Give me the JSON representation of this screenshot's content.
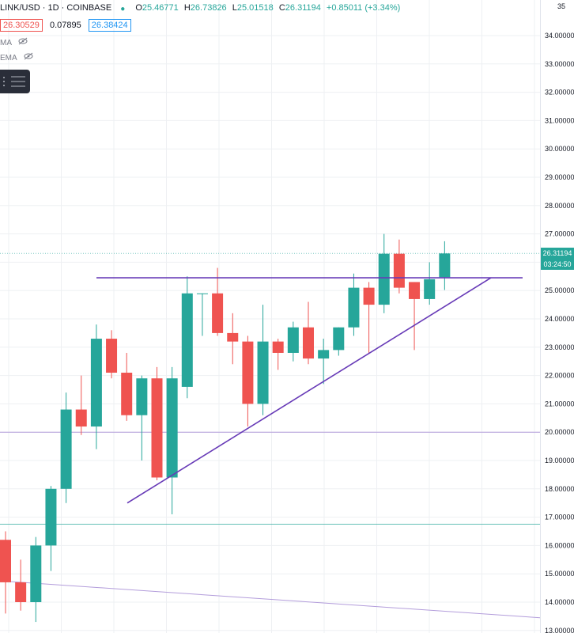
{
  "header": {
    "symbol": "LINK/USD · 1D · COINBASE",
    "open_label": "O",
    "open": "25.46771",
    "high_label": "H",
    "high": "26.73826",
    "low_label": "L",
    "low": "25.01518",
    "close_label": "C",
    "close": "26.31194",
    "change": "+0.85011 (+3.34%)",
    "bid": "26.30529",
    "spread": "0.07895",
    "ask": "26.38424"
  },
  "indicators": [
    {
      "name": "MA"
    },
    {
      "name": "EMA"
    }
  ],
  "axis": {
    "top_partial": "35",
    "last_price": "26.31194",
    "countdown": "03:24:50"
  },
  "colors": {
    "up": "#26a69a",
    "down": "#ef5350",
    "trendline": "#673ab7",
    "support_line": "#b39ddb",
    "price_line": "#26a69a",
    "grid": "#eef0f3"
  },
  "chart_data": {
    "type": "candlestick",
    "symbol": "LINK/USD",
    "interval": "1D",
    "exchange": "COINBASE",
    "y_ticks": [
      "34.00000",
      "33.00000",
      "32.00000",
      "31.00000",
      "30.00000",
      "29.00000",
      "28.00000",
      "27.00000",
      "26.00000",
      "25.00000",
      "24.00000",
      "23.00000",
      "22.00000",
      "21.00000",
      "20.00000",
      "19.00000",
      "18.00000",
      "17.00000",
      "16.00000",
      "15.00000",
      "14.00000",
      "13.00000"
    ],
    "ylim": [
      12.9,
      35.1
    ],
    "grid": true,
    "candles": [
      {
        "o": 16.2,
        "h": 16.5,
        "l": 13.6,
        "c": 14.7
      },
      {
        "o": 14.7,
        "h": 15.5,
        "l": 13.7,
        "c": 14.0
      },
      {
        "o": 14.0,
        "h": 16.3,
        "l": 13.3,
        "c": 16.0
      },
      {
        "o": 16.0,
        "h": 18.1,
        "l": 15.1,
        "c": 18.0
      },
      {
        "o": 18.0,
        "h": 21.4,
        "l": 17.5,
        "c": 20.8
      },
      {
        "o": 20.8,
        "h": 22.0,
        "l": 19.9,
        "c": 20.2
      },
      {
        "o": 20.2,
        "h": 23.8,
        "l": 19.4,
        "c": 23.3
      },
      {
        "o": 23.3,
        "h": 23.6,
        "l": 21.9,
        "c": 22.1
      },
      {
        "o": 22.1,
        "h": 22.8,
        "l": 20.4,
        "c": 20.6
      },
      {
        "o": 20.6,
        "h": 22.0,
        "l": 19.0,
        "c": 21.9
      },
      {
        "o": 21.9,
        "h": 22.3,
        "l": 18.3,
        "c": 18.4
      },
      {
        "o": 18.4,
        "h": 22.3,
        "l": 17.1,
        "c": 21.9
      },
      {
        "o": 21.6,
        "h": 25.5,
        "l": 21.2,
        "c": 24.9
      },
      {
        "o": 24.9,
        "h": 24.9,
        "l": 23.4,
        "c": 24.9
      },
      {
        "o": 24.9,
        "h": 25.8,
        "l": 23.4,
        "c": 23.5
      },
      {
        "o": 23.5,
        "h": 24.2,
        "l": 22.4,
        "c": 23.2
      },
      {
        "o": 23.2,
        "h": 23.4,
        "l": 20.2,
        "c": 21.0
      },
      {
        "o": 21.0,
        "h": 24.5,
        "l": 20.6,
        "c": 23.2
      },
      {
        "o": 23.2,
        "h": 23.3,
        "l": 22.2,
        "c": 22.8
      },
      {
        "o": 22.8,
        "h": 23.9,
        "l": 22.5,
        "c": 23.7
      },
      {
        "o": 23.7,
        "h": 24.6,
        "l": 22.4,
        "c": 22.6
      },
      {
        "o": 22.6,
        "h": 23.3,
        "l": 21.7,
        "c": 22.9
      },
      {
        "o": 22.9,
        "h": 23.7,
        "l": 22.7,
        "c": 23.7
      },
      {
        "o": 23.7,
        "h": 25.6,
        "l": 23.4,
        "c": 25.1
      },
      {
        "o": 25.1,
        "h": 25.3,
        "l": 22.8,
        "c": 24.5
      },
      {
        "o": 24.5,
        "h": 27.0,
        "l": 24.2,
        "c": 26.3
      },
      {
        "o": 26.3,
        "h": 26.8,
        "l": 24.9,
        "c": 25.1
      },
      {
        "o": 25.3,
        "h": 25.3,
        "l": 22.9,
        "c": 24.7
      },
      {
        "o": 24.7,
        "h": 26.0,
        "l": 24.5,
        "c": 25.4
      },
      {
        "o": 25.47,
        "h": 26.74,
        "l": 25.02,
        "c": 26.31
      }
    ]
  }
}
